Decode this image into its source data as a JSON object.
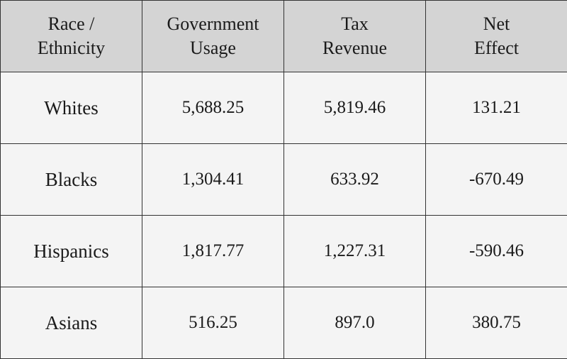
{
  "chart_data": {
    "type": "table",
    "columns": [
      [
        "Race /",
        "Ethnicity"
      ],
      [
        "Government",
        "Usage"
      ],
      [
        "Tax",
        "Revenue"
      ],
      [
        "Net",
        "Effect"
      ]
    ],
    "rows": [
      [
        "Whites",
        "5,688.25",
        "5,819.46",
        "131.21"
      ],
      [
        "Blacks",
        "1,304.41",
        "633.92",
        "-670.49"
      ],
      [
        "Hispanics",
        "1,817.77",
        "1,227.31",
        "-590.46"
      ],
      [
        "Asians",
        "516.25",
        "897.0",
        "380.75"
      ]
    ]
  },
  "colors": {
    "header_bg": "#d4d4d4",
    "cell_bg": "#f4f4f4",
    "border": "#333333"
  }
}
